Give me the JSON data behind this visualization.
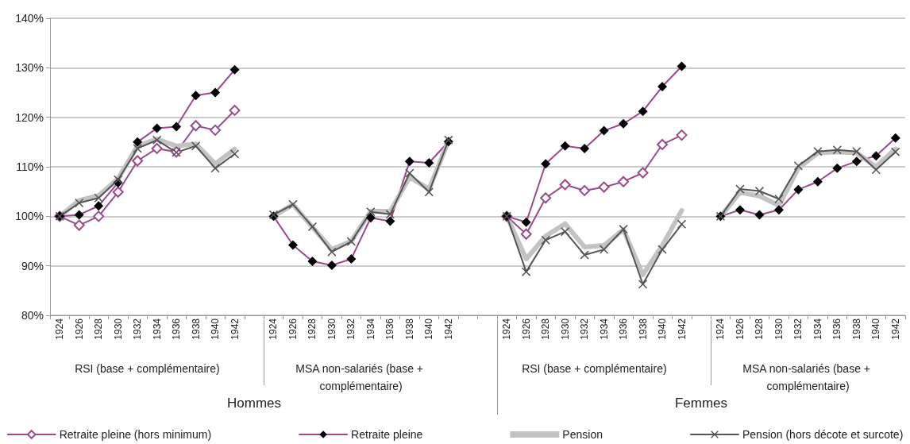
{
  "chart_data": {
    "type": "line",
    "categories": [
      "1924",
      "1926",
      "1928",
      "1930",
      "1932",
      "1934",
      "1936",
      "1938",
      "1940",
      "1942",
      null,
      "1924",
      "1926",
      "1928",
      "1930",
      "1932",
      "1934",
      "1936",
      "1938",
      "1940",
      "1942",
      null,
      null,
      "1924",
      "1926",
      "1928",
      "1930",
      "1932",
      "1934",
      "1936",
      "1938",
      "1940",
      "1942",
      null,
      "1924",
      "1926",
      "1928",
      "1930",
      "1932",
      "1934",
      "1936",
      "1938",
      "1940",
      "1942"
    ],
    "series": [
      {
        "name": "Retraite pleine (hors minimum)",
        "color": "#9b4a8c",
        "marker": "diamond",
        "values": [
          100,
          98.2,
          100,
          104.9,
          111.2,
          113.7,
          113.0,
          118.3,
          117.4,
          121.4,
          null,
          null,
          null,
          null,
          null,
          null,
          null,
          null,
          null,
          null,
          null,
          null,
          null,
          100,
          96.4,
          103.7,
          106.4,
          105.2,
          105.9,
          107.0,
          108.8,
          114.5,
          116.4,
          null,
          null,
          null,
          null,
          null,
          null,
          null,
          null,
          null,
          null,
          null
        ]
      },
      {
        "name": "Retraite pleine",
        "color": "#9b4a8c",
        "marker": "diamond",
        "colors": [
          "#000000",
          "#000000",
          "#000000",
          "#000000",
          "#000000",
          "#000000",
          "#000000",
          "#000000",
          "#000000",
          "#000000",
          "#000000",
          "#000000",
          "#000000",
          "#000000",
          "#000000",
          "#000000",
          "#000000",
          "#000000",
          "#000000",
          "#000000",
          "#000000",
          "#000000",
          "#000000",
          "#000000",
          "#000000",
          "#000000",
          "#000000",
          "#000000",
          "#000000",
          "#000000",
          "#000000",
          "#000000",
          "#000000",
          "#000000",
          "#000000",
          "#000000",
          "#000000",
          "#000000",
          "#000000",
          "#000000",
          "#000000",
          "#000000",
          "#000000",
          "#000000"
        ],
        "values": [
          100,
          100.3,
          102.1,
          106.8,
          115.0,
          117.8,
          118.1,
          124.4,
          125.0,
          129.6,
          null,
          100,
          94.2,
          90.9,
          90.1,
          91.4,
          99.7,
          99.0,
          111.1,
          110.8,
          115.1,
          null,
          null,
          100,
          98.8,
          110.6,
          114.2,
          113.7,
          117.3,
          118.7,
          121.2,
          126.2,
          130.3,
          null,
          100,
          101.3,
          100.3,
          101.3,
          105.4,
          107.0,
          109.7,
          111.1,
          112.2,
          115.8
        ]
      },
      {
        "name": "Pension",
        "color": "#c3c3c3",
        "marker": "none",
        "values": [
          100,
          103.2,
          104.2,
          107.6,
          114.2,
          115.6,
          114.2,
          114.6,
          110.6,
          113.6,
          null,
          100,
          102.4,
          97.8,
          93.3,
          95.0,
          101.0,
          101.0,
          107.9,
          105.5,
          115.2,
          null,
          null,
          100,
          91.4,
          96.0,
          98.5,
          93.8,
          94.1,
          97.3,
          88.2,
          94.1,
          101.2,
          null,
          100,
          104.8,
          104.1,
          102.2,
          109.7,
          112.8,
          113.0,
          112.8,
          110.0,
          113.6
        ]
      },
      {
        "name": "Pension (hors décote et surcote)",
        "color": "#555555",
        "marker": "cross",
        "values": [
          100,
          102.7,
          103.7,
          107.4,
          113.7,
          115.4,
          112.9,
          114.2,
          109.7,
          112.6,
          null,
          100.3,
          102.4,
          97.9,
          92.8,
          94.9,
          100.9,
          100.4,
          108.7,
          104.9,
          115.4,
          null,
          null,
          100,
          88.8,
          95.2,
          96.9,
          92.2,
          93.3,
          97.4,
          86.3,
          93.3,
          98.4,
          null,
          100,
          105.5,
          105.1,
          103.5,
          110.2,
          113.1,
          113.4,
          113.1,
          109.4,
          113.0
        ]
      }
    ],
    "ylim": [
      80,
      140
    ],
    "yticks": [
      {
        "value": 80,
        "label": "80%"
      },
      {
        "value": 90,
        "label": "90%"
      },
      {
        "value": 100,
        "label": "100%"
      },
      {
        "value": 110,
        "label": "110%"
      },
      {
        "value": 120,
        "label": "120%"
      },
      {
        "value": 130,
        "label": "130%"
      },
      {
        "value": 140,
        "label": "140%"
      }
    ],
    "grid": "y",
    "legend": "bottom",
    "annotations": [
      "RSI (base + complémentaire)",
      "MSA non-salariés (base + complémentaire)",
      "RSI (base + complémentaire)",
      "MSA non-salariés (base + complémentaire)",
      "Hommes",
      "Femmes"
    ]
  }
}
